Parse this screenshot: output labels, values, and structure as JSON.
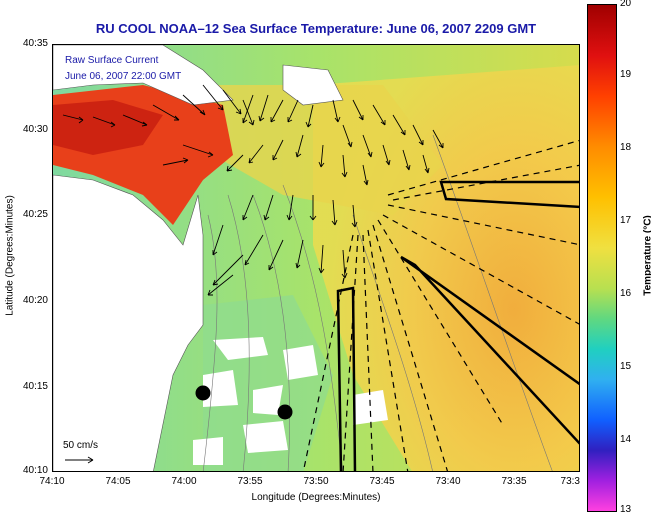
{
  "title": "RU COOL  NOAA–12  Sea Surface Temperature:  June 06, 2007 2209 GMT",
  "legend": {
    "line1": "Raw Surface Current",
    "line2": "June 06, 2007 22:00 GMT"
  },
  "scale_label": "50 cm/s",
  "axes": {
    "xlabel": "Longitude (Degrees:Minutes)",
    "ylabel": "Latitude (Degrees:Minutes)",
    "xticks": [
      "74:10",
      "74:05",
      "74:00",
      "73:55",
      "73:50",
      "73:45",
      "73:40",
      "73:35",
      "73:3"
    ],
    "yticks": [
      "40:35",
      "40:30",
      "40:25",
      "40:20",
      "40:15",
      "40:10"
    ]
  },
  "colorbar": {
    "label": "Temperature (°C)",
    "ticks": [
      "20",
      "19",
      "18",
      "17",
      "16",
      "15",
      "14",
      "13"
    ],
    "min": 13,
    "max": 20
  },
  "colors": {
    "land": "#ffffff",
    "warm": "#e8401a",
    "sea_green": "#9ee06a",
    "sea_yellow": "#f2d64a",
    "sea_orange": "#f5b43c",
    "title_blue": "#1a1aa8"
  }
}
